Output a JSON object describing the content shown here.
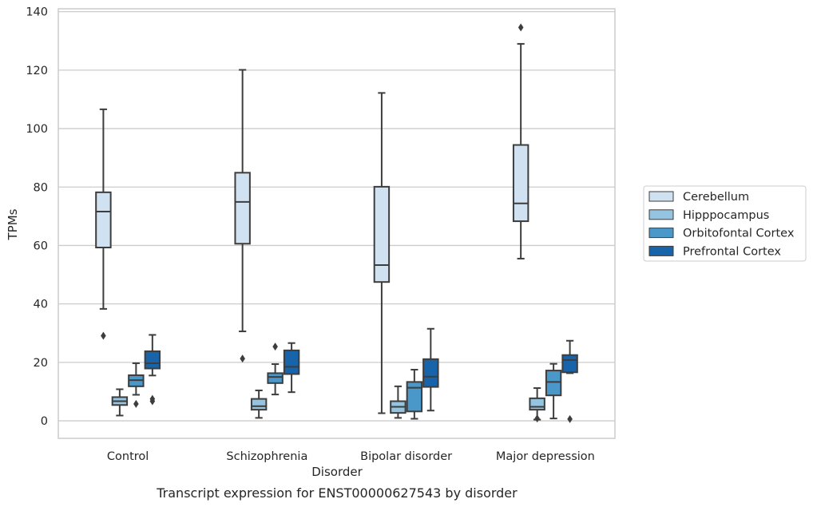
{
  "caption": "Transcript expression for ENST00000627543 by disorder",
  "chart_data": {
    "type": "box",
    "xlabel": "Disorder",
    "ylabel": "TPMs",
    "ylim": [
      -6,
      141
    ],
    "yticks": [
      0,
      20,
      40,
      60,
      80,
      100,
      120,
      140
    ],
    "grid": "horizontal",
    "legend_placement": "right",
    "categories": [
      "Control",
      "Schizophrenia",
      "Bipolar disorder",
      "Major depression"
    ],
    "series": [
      {
        "name": "Cerebellum",
        "color": "#d0e1f2",
        "boxes": [
          {
            "whislo": 38.3,
            "q1": 59.3,
            "med": 71.6,
            "q3": 78.2,
            "whishi": 106.6,
            "fliers": [
              29.1
            ]
          },
          {
            "whislo": 30.6,
            "q1": 60.6,
            "med": 74.9,
            "q3": 84.9,
            "whishi": 120.1,
            "fliers": [
              21.3
            ]
          },
          {
            "whislo": 2.6,
            "q1": 47.5,
            "med": 53.3,
            "q3": 80.1,
            "whishi": 112.2,
            "fliers": []
          },
          {
            "whislo": 55.5,
            "q1": 68.3,
            "med": 74.4,
            "q3": 94.4,
            "whishi": 129.0,
            "fliers": [
              134.6
            ]
          }
        ]
      },
      {
        "name": "Hipppocampus",
        "color": "#94c4df",
        "boxes": [
          {
            "whislo": 1.8,
            "q1": 5.4,
            "med": 6.7,
            "q3": 8.1,
            "whishi": 10.8,
            "fliers": []
          },
          {
            "whislo": 1.0,
            "q1": 3.8,
            "med": 5.0,
            "q3": 7.5,
            "whishi": 10.4,
            "fliers": []
          },
          {
            "whislo": 1.0,
            "q1": 2.7,
            "med": 4.8,
            "q3": 6.7,
            "whishi": 11.8,
            "fliers": []
          },
          {
            "whislo": 0.4,
            "q1": 3.8,
            "med": 4.8,
            "q3": 7.7,
            "whishi": 11.2,
            "fliers": [
              0.8
            ]
          }
        ]
      },
      {
        "name": "Orbitofontal Cortex",
        "color": "#4a98c9",
        "boxes": [
          {
            "whislo": 8.9,
            "q1": 11.8,
            "med": 13.9,
            "q3": 15.6,
            "whishi": 19.7,
            "fliers": [
              5.8
            ]
          },
          {
            "whislo": 9.0,
            "q1": 12.9,
            "med": 15.0,
            "q3": 16.3,
            "whishi": 19.4,
            "fliers": [
              25.4
            ]
          },
          {
            "whislo": 0.7,
            "q1": 3.2,
            "med": 11.3,
            "q3": 13.3,
            "whishi": 17.5,
            "fliers": []
          },
          {
            "whislo": 0.8,
            "q1": 8.7,
            "med": 13.3,
            "q3": 17.2,
            "whishi": 19.5,
            "fliers": []
          }
        ]
      },
      {
        "name": "Prefrontal Cortex",
        "color": "#1764ab",
        "boxes": [
          {
            "whislo": 15.5,
            "q1": 17.9,
            "med": 19.7,
            "q3": 23.8,
            "whishi": 29.4,
            "fliers": [
              6.7,
              7.5
            ]
          },
          {
            "whislo": 9.8,
            "q1": 16.0,
            "med": 18.5,
            "q3": 24.1,
            "whishi": 26.6,
            "fliers": []
          },
          {
            "whislo": 3.5,
            "q1": 11.6,
            "med": 15.1,
            "q3": 21.1,
            "whishi": 31.5,
            "fliers": []
          },
          {
            "whislo": 16.3,
            "q1": 16.6,
            "med": 20.8,
            "q3": 22.5,
            "whishi": 27.4,
            "fliers": [
              0.6
            ]
          }
        ]
      }
    ]
  }
}
